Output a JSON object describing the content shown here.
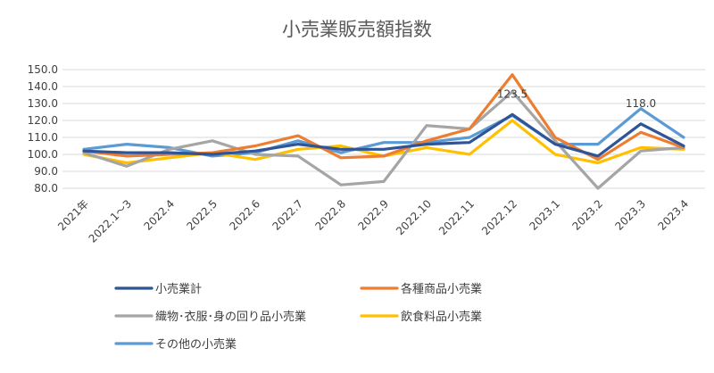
{
  "chart_data": {
    "type": "line",
    "title": "小売業販売額指数",
    "categories": [
      "2021年",
      "2022.1～3",
      "2022.4",
      "2022.5",
      "2022.6",
      "2022.7",
      "2022.8",
      "2022.9",
      "2022.10",
      "2022.11",
      "2022.12",
      "2023.1",
      "2023.2",
      "2023.3",
      "2023.4"
    ],
    "yticks": [
      "80.0",
      "90.0",
      "100.0",
      "110.0",
      "120.0",
      "130.0",
      "140.0",
      "150.0"
    ],
    "ylim": [
      80,
      150
    ],
    "grid": true,
    "legend_position": "bottom",
    "series": [
      {
        "name": "小売業計",
        "color": "#2f5597",
        "values": [
          102,
          101,
          101,
          100,
          102,
          106,
          103,
          103,
          106,
          107,
          123.5,
          106,
          99,
          118,
          105
        ]
      },
      {
        "name": "各種商品小売業",
        "color": "#ed7d31",
        "values": [
          102,
          99,
          100,
          101,
          105,
          111,
          98,
          99,
          108,
          115,
          147,
          110,
          97,
          113,
          104
        ]
      },
      {
        "name": "織物･衣服･身の回り品小売業",
        "color": "#a5a5a5",
        "values": [
          101,
          93,
          103,
          108,
          100,
          99,
          82,
          84,
          117,
          115,
          137,
          108,
          80,
          102,
          104
        ]
      },
      {
        "name": "飲食料品小売業",
        "color": "#ffc000",
        "values": [
          100,
          95,
          98,
          101,
          97,
          103,
          105,
          99,
          104,
          100,
          120,
          100,
          95,
          104,
          103
        ]
      },
      {
        "name": "その他の小売業",
        "color": "#5b9bd5",
        "values": [
          103,
          106,
          104,
          99,
          101,
          108,
          101,
          107,
          107,
          110,
          123,
          106,
          106,
          127,
          110
        ]
      }
    ],
    "annotations": [
      {
        "text": "123.5",
        "series": 0,
        "index": 10
      },
      {
        "text": "118.0",
        "series": 0,
        "index": 13
      }
    ]
  }
}
